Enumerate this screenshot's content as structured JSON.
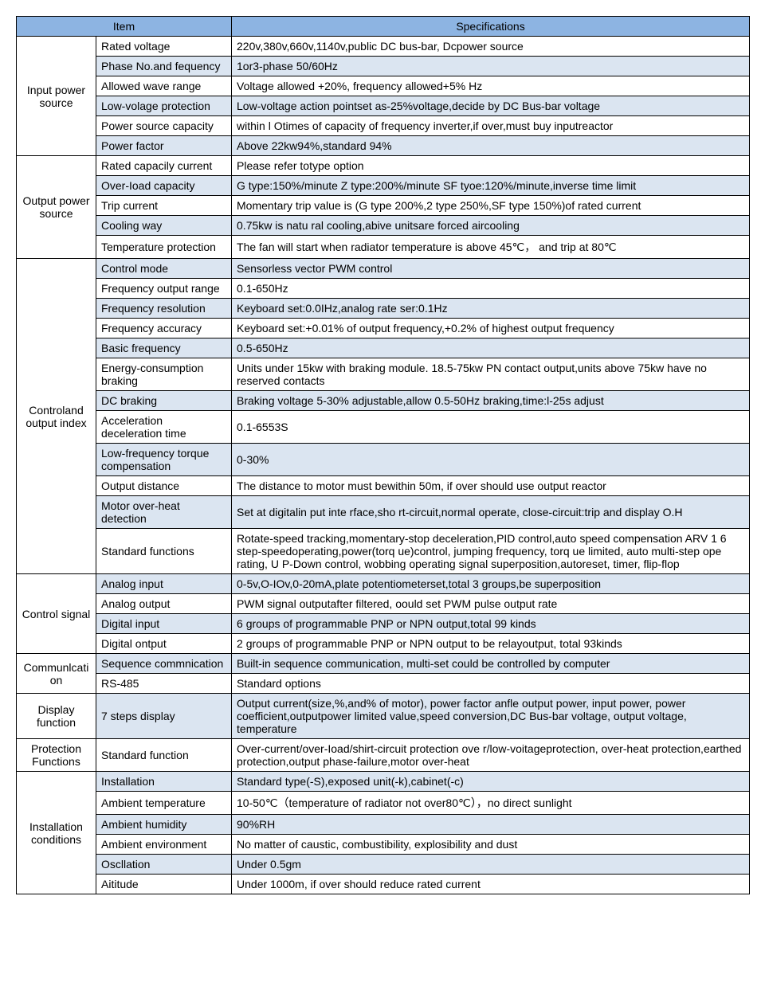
{
  "headers": {
    "item": "Item",
    "spec": "Specifications"
  },
  "colors": {
    "header_bg": "#8db4e2",
    "alt_bg": "#dbe5f1",
    "border": "#000000",
    "text": "#000000",
    "page_bg": "#ffffff"
  },
  "categories": [
    {
      "name": "Input power source",
      "rows": [
        {
          "label": "Rated voltage",
          "spec": "220v,380v,660v,1140v,public DC bus-bar, Dcpower source",
          "alt": false
        },
        {
          "label": "Phase No.and fequency",
          "spec": "1or3-phase 50/60Hz",
          "alt": true
        },
        {
          "label": "Allowed wave range",
          "spec": "Voltage allowed +20%, frequency allowed+5% Hz",
          "alt": false
        },
        {
          "label": "Low-volage protection",
          "spec": "Low-voltage action pointset as-25%voltage,decide by DC Bus-bar voltage",
          "alt": true
        },
        {
          "label": "Power source capacity",
          "spec": "within l Otimes of capacity of frequency inverter,if over,must buy inputreactor",
          "alt": false
        },
        {
          "label": "Power factor",
          "spec": "Above 22kw94%,standard 94%",
          "alt": true
        }
      ]
    },
    {
      "name": "Output power source",
      "rows": [
        {
          "label": "Rated capacily current",
          "spec": "Please refer totype option",
          "alt": false
        },
        {
          "label": "Over-Ioad capacity",
          "spec": "G type:150%/minute Z type:200%/minute SF tyoe:120%/minute,inverse time limit",
          "alt": true
        },
        {
          "label": "Trip current",
          "spec": "Momentary trip value is (G type 200%,2 type 250%,SF type 150%)of rated current",
          "alt": false
        },
        {
          "label": "Cooling way",
          "spec": "0.75kw is natu ral cooling,abive unitsare forced aircooling",
          "alt": true
        },
        {
          "label": "Temperature protection",
          "spec": "The fan will start when radiator temperature is above 45℃， and trip at 80℃",
          "alt": false
        }
      ]
    },
    {
      "name": "Controland output index",
      "rows": [
        {
          "label": "Control mode",
          "spec": "Sensorless vector PWM control",
          "alt": true
        },
        {
          "label": "Frequency output range",
          "spec": "0.1-650Hz",
          "alt": false
        },
        {
          "label": "Frequency resolution",
          "spec": "Keyboard set:0.0IHz,analog rate ser:0.1Hz",
          "alt": true
        },
        {
          "label": "Frequency accuracy",
          "spec": "Keyboard set:+0.01% of output frequency,+0.2% of highest output frequency",
          "alt": false
        },
        {
          "label": "Basic frequency",
          "spec": "0.5-650Hz",
          "alt": true
        },
        {
          "label": "Energy-consumption braking",
          "spec": "Units under 15kw with braking module. 18.5-75kw PN contact output,units above 75kw have no reserved contacts",
          "alt": false
        },
        {
          "label": "DC braking",
          "spec": "Braking voltage 5-30% adjustable,allow 0.5-50Hz braking,time:l-25s adjust",
          "alt": true
        },
        {
          "label": "Acceleration deceleration time",
          "spec": "0.1-6553S",
          "alt": false
        },
        {
          "label": "Low-frequency torque compensation",
          "spec": "0-30%",
          "alt": true
        },
        {
          "label": "Output distance",
          "spec": "The distance to motor must bewithin 50m, if over should use output reactor",
          "alt": false
        },
        {
          "label": "Motor over-heat detection",
          "spec": "Set at digitalin put inte rface,sho rt-circuit,normal operate, close-circuit:trip and display O.H",
          "alt": true
        },
        {
          "label": "Standard functions",
          "spec": "Rotate-speed tracking,momentary-stop deceleration,PID control,auto speed compensation ARV 1 6 step-speedoperating,power(torq ue)control, jumping frequency, torq ue limited, auto multi-step ope rating, U P-Down control, wobbing operating signal superposition,autoreset, timer, flip-flop",
          "alt": false
        }
      ]
    },
    {
      "name": "Control signal",
      "rows": [
        {
          "label": "Analog input",
          "spec": "0-5v,O-IOv,0-20mA,plate potentiometerset,total 3 groups,be superposition",
          "alt": true
        },
        {
          "label": "Analog output",
          "spec": "PWM signal outputafter filtered, oould set PWM pulse output rate",
          "alt": false
        },
        {
          "label": "Digital input",
          "spec": "6 groups of programmable PNP or NPN output,total 99 kinds",
          "alt": true
        },
        {
          "label": "Digital ontput",
          "spec": "2 groups of programmable PNP or NPN output to be relayoutput, total 93kinds",
          "alt": false
        }
      ]
    },
    {
      "name": "Communlcation",
      "rows": [
        {
          "label": "Sequence commnication",
          "spec": "Built-in sequence communication, multi-set could be controlled by computer",
          "alt": true
        },
        {
          "label": "RS-485",
          "spec": "Standard options",
          "alt": false
        }
      ]
    },
    {
      "name": "Display function",
      "rows": [
        {
          "label": "7 steps display",
          "spec": "Output current(size,%,and% of motor), power factor anfle output power, input power, power coefficient,outputpower limited value,speed conversion,DC Bus-bar voltage, output voltage, temperature",
          "alt": true
        }
      ]
    },
    {
      "name": "Protection Functions",
      "rows": [
        {
          "label": "Standard function",
          "spec": "Over-current/over-Ioad/shirt-circuit protection ove r/low-voitageprotection, over-heat protection,earthed protection,output phase-failure,motor over-heat",
          "alt": false
        }
      ]
    },
    {
      "name": "Installation conditions",
      "rows": [
        {
          "label": "Installation",
          "spec": "Standard type(-S),exposed unit(-k),cabinet(-c)",
          "alt": true
        },
        {
          "label": "Ambient temperature",
          "spec": "10-50℃（temperature of radiator not over80℃），no direct sunlight",
          "alt": false
        },
        {
          "label": "Ambient humidity",
          "spec": "90%RH",
          "alt": true
        },
        {
          "label": "Ambient environment",
          "spec": "No matter of caustic, combustibility, explosibility and dust",
          "alt": false
        },
        {
          "label": "Oscllation",
          "spec": "Under 0.5gm",
          "alt": true
        },
        {
          "label": "Aititude",
          "spec": "Under 1000m, if over should reduce rated current",
          "alt": false
        }
      ]
    }
  ]
}
